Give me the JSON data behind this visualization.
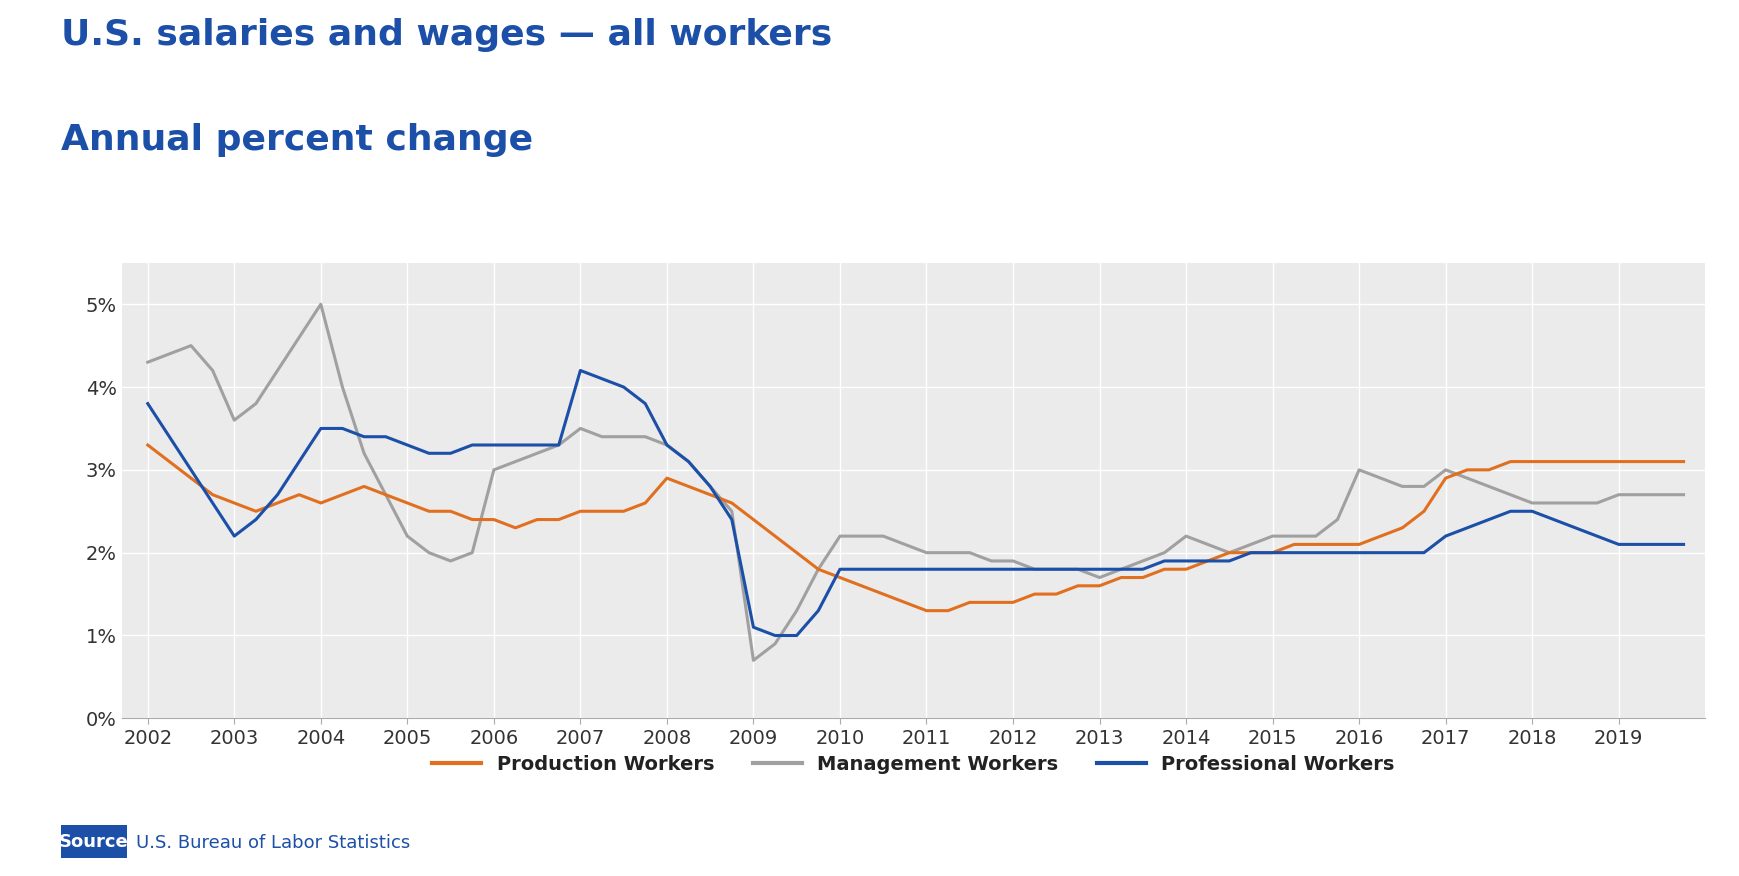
{
  "title_line1": "U.S. salaries and wages — all workers",
  "title_line2": "Annual percent change",
  "title_color": "#1b4fa8",
  "source_label": "Source",
  "source_text": "U.S. Bureau of Labor Statistics",
  "source_bg": "#1b4fa8",
  "background_color": "#ffffff",
  "plot_bg": "#ebebeb",
  "ylim": [
    0.0,
    0.055
  ],
  "yticks": [
    0.0,
    0.01,
    0.02,
    0.03,
    0.04,
    0.05
  ],
  "ytick_labels": [
    "0%",
    "1%",
    "2%",
    "3%",
    "4%",
    "5%"
  ],
  "grid_color": "#ffffff",
  "production_color": "#e07020",
  "management_color": "#a0a0a0",
  "professional_color": "#1b4fa8",
  "line_width": 2.2,
  "legend_fontsize": 14,
  "title_fontsize1": 26,
  "title_fontsize2": 26,
  "tick_fontsize": 14,
  "source_fontsize": 13,
  "prod_x": [
    2002.0,
    2002.25,
    2002.5,
    2002.75,
    2003.0,
    2003.25,
    2003.5,
    2003.75,
    2004.0,
    2004.25,
    2004.5,
    2004.75,
    2005.0,
    2005.25,
    2005.5,
    2005.75,
    2006.0,
    2006.25,
    2006.5,
    2006.75,
    2007.0,
    2007.25,
    2007.5,
    2007.75,
    2008.0,
    2008.25,
    2008.5,
    2008.75,
    2009.0,
    2009.25,
    2009.5,
    2009.75,
    2010.0,
    2010.25,
    2010.5,
    2010.75,
    2011.0,
    2011.25,
    2011.5,
    2011.75,
    2012.0,
    2012.25,
    2012.5,
    2012.75,
    2013.0,
    2013.25,
    2013.5,
    2013.75,
    2014.0,
    2014.25,
    2014.5,
    2014.75,
    2015.0,
    2015.25,
    2015.5,
    2015.75,
    2016.0,
    2016.25,
    2016.5,
    2016.75,
    2017.0,
    2017.25,
    2017.5,
    2017.75,
    2018.0,
    2018.25,
    2018.5,
    2018.75,
    2019.0,
    2019.25,
    2019.5,
    2019.75
  ],
  "prod_y": [
    0.033,
    0.031,
    0.029,
    0.027,
    0.026,
    0.025,
    0.026,
    0.027,
    0.026,
    0.027,
    0.028,
    0.027,
    0.026,
    0.025,
    0.025,
    0.024,
    0.024,
    0.023,
    0.024,
    0.024,
    0.025,
    0.025,
    0.025,
    0.026,
    0.029,
    0.028,
    0.027,
    0.026,
    0.024,
    0.022,
    0.02,
    0.018,
    0.017,
    0.016,
    0.015,
    0.014,
    0.013,
    0.013,
    0.014,
    0.014,
    0.014,
    0.015,
    0.015,
    0.016,
    0.016,
    0.017,
    0.017,
    0.018,
    0.018,
    0.019,
    0.02,
    0.02,
    0.02,
    0.021,
    0.021,
    0.021,
    0.021,
    0.022,
    0.023,
    0.025,
    0.029,
    0.03,
    0.03,
    0.031,
    0.031,
    0.031,
    0.031,
    0.031,
    0.031,
    0.031,
    0.031,
    0.031
  ],
  "mgmt_x": [
    2002.0,
    2002.25,
    2002.5,
    2002.75,
    2003.0,
    2003.25,
    2003.5,
    2003.75,
    2004.0,
    2004.25,
    2004.5,
    2004.75,
    2005.0,
    2005.25,
    2005.5,
    2005.75,
    2006.0,
    2006.25,
    2006.5,
    2006.75,
    2007.0,
    2007.25,
    2007.5,
    2007.75,
    2008.0,
    2008.25,
    2008.5,
    2008.75,
    2009.0,
    2009.25,
    2009.5,
    2009.75,
    2010.0,
    2010.25,
    2010.5,
    2010.75,
    2011.0,
    2011.25,
    2011.5,
    2011.75,
    2012.0,
    2012.25,
    2012.5,
    2012.75,
    2013.0,
    2013.25,
    2013.5,
    2013.75,
    2014.0,
    2014.25,
    2014.5,
    2014.75,
    2015.0,
    2015.25,
    2015.5,
    2015.75,
    2016.0,
    2016.25,
    2016.5,
    2016.75,
    2017.0,
    2017.25,
    2017.5,
    2017.75,
    2018.0,
    2018.25,
    2018.5,
    2018.75,
    2019.0,
    2019.25,
    2019.5,
    2019.75
  ],
  "mgmt_y": [
    0.043,
    0.044,
    0.045,
    0.042,
    0.036,
    0.038,
    0.042,
    0.046,
    0.05,
    0.04,
    0.032,
    0.027,
    0.022,
    0.02,
    0.019,
    0.02,
    0.03,
    0.031,
    0.032,
    0.033,
    0.035,
    0.034,
    0.034,
    0.034,
    0.033,
    0.031,
    0.028,
    0.025,
    0.007,
    0.009,
    0.013,
    0.018,
    0.022,
    0.022,
    0.022,
    0.021,
    0.02,
    0.02,
    0.02,
    0.019,
    0.019,
    0.018,
    0.018,
    0.018,
    0.017,
    0.018,
    0.019,
    0.02,
    0.022,
    0.021,
    0.02,
    0.021,
    0.022,
    0.022,
    0.022,
    0.024,
    0.03,
    0.029,
    0.028,
    0.028,
    0.03,
    0.029,
    0.028,
    0.027,
    0.026,
    0.026,
    0.026,
    0.026,
    0.027,
    0.027,
    0.027,
    0.027
  ],
  "prof_x": [
    2002.0,
    2002.25,
    2002.5,
    2002.75,
    2003.0,
    2003.25,
    2003.5,
    2003.75,
    2004.0,
    2004.25,
    2004.5,
    2004.75,
    2005.0,
    2005.25,
    2005.5,
    2005.75,
    2006.0,
    2006.25,
    2006.5,
    2006.75,
    2007.0,
    2007.25,
    2007.5,
    2007.75,
    2008.0,
    2008.25,
    2008.5,
    2008.75,
    2009.0,
    2009.25,
    2009.5,
    2009.75,
    2010.0,
    2010.25,
    2010.5,
    2010.75,
    2011.0,
    2011.25,
    2011.5,
    2011.75,
    2012.0,
    2012.25,
    2012.5,
    2012.75,
    2013.0,
    2013.25,
    2013.5,
    2013.75,
    2014.0,
    2014.25,
    2014.5,
    2014.75,
    2015.0,
    2015.25,
    2015.5,
    2015.75,
    2016.0,
    2016.25,
    2016.5,
    2016.75,
    2017.0,
    2017.25,
    2017.5,
    2017.75,
    2018.0,
    2018.25,
    2018.5,
    2018.75,
    2019.0,
    2019.25,
    2019.5,
    2019.75
  ],
  "prof_y": [
    0.038,
    0.034,
    0.03,
    0.026,
    0.022,
    0.024,
    0.027,
    0.031,
    0.035,
    0.035,
    0.034,
    0.034,
    0.033,
    0.032,
    0.032,
    0.033,
    0.033,
    0.033,
    0.033,
    0.033,
    0.042,
    0.041,
    0.04,
    0.038,
    0.033,
    0.031,
    0.028,
    0.024,
    0.011,
    0.01,
    0.01,
    0.013,
    0.018,
    0.018,
    0.018,
    0.018,
    0.018,
    0.018,
    0.018,
    0.018,
    0.018,
    0.018,
    0.018,
    0.018,
    0.018,
    0.018,
    0.018,
    0.019,
    0.019,
    0.019,
    0.019,
    0.02,
    0.02,
    0.02,
    0.02,
    0.02,
    0.02,
    0.02,
    0.02,
    0.02,
    0.022,
    0.023,
    0.024,
    0.025,
    0.025,
    0.024,
    0.023,
    0.022,
    0.021,
    0.021,
    0.021,
    0.021
  ]
}
